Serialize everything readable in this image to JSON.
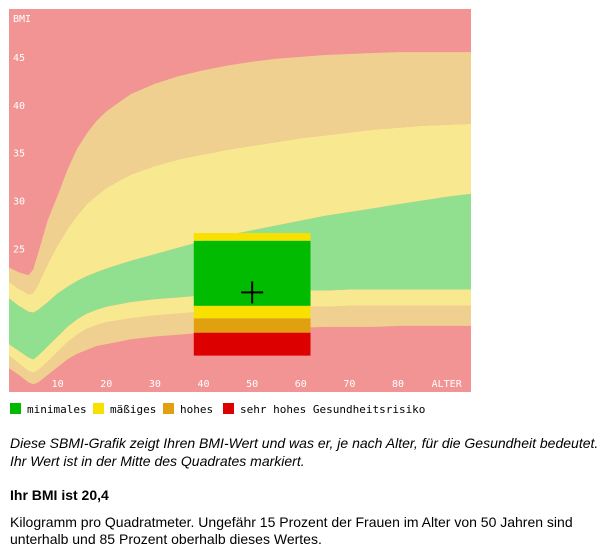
{
  "chart_data": {
    "type": "area",
    "ylabel": "BMI",
    "xlabel": "ALTER",
    "xlim": [
      0,
      95
    ],
    "ylim": [
      10,
      50
    ],
    "x_ticks": [
      10,
      20,
      30,
      40,
      50,
      60,
      70,
      80
    ],
    "x_tick_labels": [
      "10",
      "20",
      "30",
      "40",
      "50",
      "60",
      "70",
      "80"
    ],
    "x_axis_label_at": 90,
    "y_ticks": [
      15,
      20,
      25,
      30,
      35,
      40,
      45
    ],
    "y_tick_labels": [
      "",
      "",
      "25",
      "30",
      "35",
      "40",
      "45"
    ],
    "background_color": "#f29494",
    "x": [
      0,
      2,
      4,
      5,
      6,
      8,
      10,
      12,
      14,
      16,
      18,
      20,
      25,
      30,
      35,
      40,
      45,
      50,
      55,
      60,
      65,
      70,
      75,
      80,
      85,
      90,
      95
    ],
    "bands": [
      {
        "name": "hoch_unten",
        "color": "#f0d090",
        "lower": [
          12.5,
          11.8,
          11.0,
          10.8,
          11.0,
          11.8,
          12.6,
          13.4,
          14.0,
          14.4,
          14.8,
          15.0,
          15.5,
          15.8,
          16.0,
          16.2,
          16.4,
          16.5,
          16.6,
          16.7,
          16.8,
          16.8,
          16.8,
          16.9,
          16.9,
          16.9,
          16.9
        ],
        "upper": [
          13.8,
          13.0,
          12.2,
          12.0,
          12.3,
          13.2,
          14.2,
          15.2,
          16.0,
          16.6,
          17.0,
          17.3,
          17.7,
          18.0,
          18.2,
          18.4,
          18.6,
          18.7,
          18.8,
          18.9,
          18.9,
          19.0,
          19.0,
          19.0,
          19.0,
          19.0,
          19.0
        ]
      },
      {
        "name": "maessig_unten",
        "color": "#f8e890",
        "lower": [
          13.8,
          13.0,
          12.2,
          12.0,
          12.3,
          13.2,
          14.2,
          15.2,
          16.0,
          16.6,
          17.0,
          17.3,
          17.7,
          18.0,
          18.2,
          18.4,
          18.6,
          18.7,
          18.8,
          18.9,
          18.9,
          19.0,
          19.0,
          19.0,
          19.0,
          19.0,
          19.0
        ],
        "upper": [
          15.0,
          14.3,
          13.6,
          13.4,
          13.8,
          14.8,
          15.8,
          16.8,
          17.6,
          18.2,
          18.6,
          18.9,
          19.4,
          19.7,
          19.9,
          20.1,
          20.3,
          20.4,
          20.5,
          20.6,
          20.6,
          20.7,
          20.7,
          20.7,
          20.7,
          20.7,
          20.7
        ]
      },
      {
        "name": "minimal",
        "color": "#90e090",
        "lower": [
          15.0,
          14.3,
          13.6,
          13.4,
          13.8,
          14.8,
          15.8,
          16.8,
          17.6,
          18.2,
          18.6,
          18.9,
          19.4,
          19.7,
          19.9,
          20.1,
          20.3,
          20.4,
          20.5,
          20.6,
          20.6,
          20.7,
          20.7,
          20.7,
          20.7,
          20.7,
          20.7
        ],
        "upper": [
          19.8,
          19.0,
          18.4,
          18.3,
          18.6,
          19.4,
          20.3,
          21.0,
          21.6,
          22.1,
          22.5,
          22.9,
          23.7,
          24.4,
          25.1,
          25.8,
          26.4,
          26.9,
          27.4,
          27.9,
          28.4,
          28.8,
          29.2,
          29.6,
          30.0,
          30.4,
          30.7
        ]
      },
      {
        "name": "maessig_oben",
        "color": "#f8e890",
        "lower": [
          19.8,
          19.0,
          18.4,
          18.3,
          18.6,
          19.4,
          20.3,
          21.0,
          21.6,
          22.1,
          22.5,
          22.9,
          23.7,
          24.4,
          25.1,
          25.8,
          26.4,
          26.9,
          27.4,
          27.9,
          28.4,
          28.8,
          29.2,
          29.6,
          30.0,
          30.4,
          30.7
        ],
        "upper": [
          21.5,
          20.8,
          20.2,
          20.3,
          21.2,
          23.4,
          25.3,
          27.0,
          28.4,
          29.6,
          30.5,
          31.3,
          32.7,
          33.6,
          34.3,
          34.8,
          35.3,
          35.7,
          36.1,
          36.5,
          36.8,
          37.1,
          37.4,
          37.6,
          37.8,
          37.9,
          38.0
        ]
      },
      {
        "name": "hoch_oben",
        "color": "#f0d090",
        "lower": [
          21.5,
          20.8,
          20.2,
          20.3,
          21.2,
          23.4,
          25.3,
          27.0,
          28.4,
          29.6,
          30.5,
          31.3,
          32.7,
          33.6,
          34.3,
          34.8,
          35.3,
          35.7,
          36.1,
          36.5,
          36.8,
          37.1,
          37.4,
          37.6,
          37.8,
          37.9,
          38.0
        ],
        "upper": [
          23.0,
          22.5,
          22.2,
          22.8,
          24.5,
          28.0,
          30.5,
          33.2,
          35.4,
          37.0,
          38.3,
          39.3,
          41.1,
          42.2,
          43.0,
          43.6,
          44.1,
          44.5,
          44.8,
          45.0,
          45.2,
          45.3,
          45.4,
          45.5,
          45.5,
          45.5,
          45.5
        ]
      }
    ],
    "marker_box": {
      "x_range": [
        38,
        62
      ],
      "segments": [
        {
          "from": 13.8,
          "to": 16.2,
          "color": "#dd0000",
          "category": "sehr hohes Gesundheitsrisiko"
        },
        {
          "from": 16.2,
          "to": 17.7,
          "color": "#e0a010",
          "category": "hohes"
        },
        {
          "from": 17.7,
          "to": 19.0,
          "color": "#f8e000",
          "category": "mäßiges"
        },
        {
          "from": 19.0,
          "to": 25.8,
          "color": "#00bb00",
          "category": "minimales"
        },
        {
          "from": 25.8,
          "to": 26.6,
          "color": "#f8e000",
          "category": "mäßiges"
        }
      ]
    },
    "marker": {
      "age": 50,
      "bmi": 20.4
    },
    "legend": [
      {
        "label": "minimales",
        "color": "#00bb00"
      },
      {
        "label": "mäßiges",
        "color": "#f8e000"
      },
      {
        "label": "hohes",
        "color": "#e0a010"
      },
      {
        "label": "sehr hohes Gesundheitsrisiko",
        "color": "#dd0000"
      }
    ],
    "legend_position": "bottom",
    "grid": false
  },
  "caption": "Diese SBMI-Grafik zeigt Ihren BMI-Wert und was er, je nach Alter, für die Gesundheit bedeutet. Ihr Wert ist in der Mitte des Quadrates markiert.",
  "result": "Ihr BMI ist 20,4",
  "explanation": "Kilogramm pro Quadratmeter. Ungefähr 15 Prozent der Frauen im Alter von 50 Jahren sind unterhalb und 85 Prozent oberhalb dieses Wertes."
}
